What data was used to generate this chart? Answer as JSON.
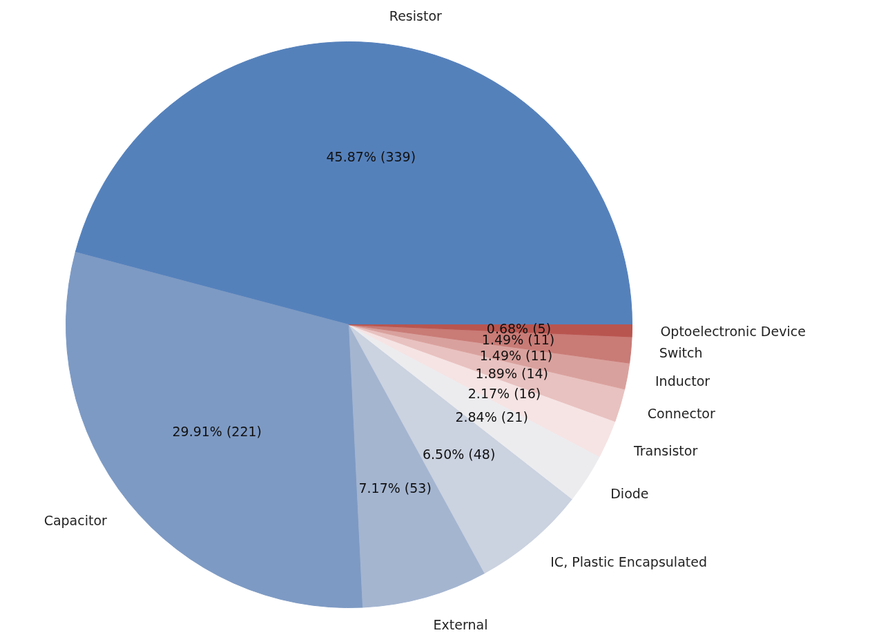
{
  "chart_data": {
    "type": "pie",
    "categories": [
      "Resistor",
      "Capacitor",
      "External",
      "IC, Plastic Encapsulated",
      "Diode",
      "Transistor",
      "Connector",
      "Inductor",
      "Switch",
      "Optoelectronic Device"
    ],
    "values": [
      339,
      221,
      53,
      48,
      21,
      16,
      14,
      11,
      11,
      5
    ],
    "colors": [
      "#5581bb",
      "#7d9ac4",
      "#a4b5d0",
      "#cbd2e0",
      "#ececef",
      "#f6e4e4",
      "#e8c2c0",
      "#d9a19d",
      "#c97b76",
      "#b9554f"
    ],
    "value_labels": [
      "45.87% (339)",
      "29.91% (221)",
      "7.17% (53)",
      "6.50% (48)",
      "2.84% (21)",
      "2.17% (16)",
      "1.89% (14)",
      "1.49% (11)",
      "1.49% (11)",
      "0.68% (5)"
    ]
  }
}
